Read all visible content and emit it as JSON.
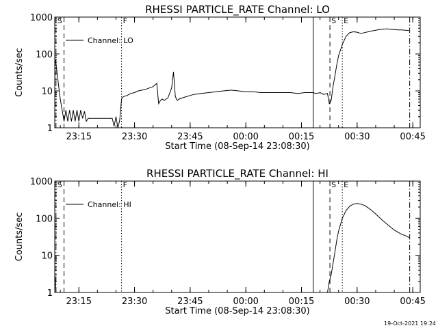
{
  "stamp": "19-Oct-2021 19:24",
  "chart_data": [
    {
      "type": "line",
      "title": "RHESSI PARTICLE_RATE Channel: LO",
      "xlabel": "Start Time (08-Sep-14 23:08:30)",
      "ylabel": "Counts/sec",
      "yscale": "log",
      "ylim": [
        1,
        1000
      ],
      "xlim": [
        "23:08:30",
        "00:47:00"
      ],
      "x_ticks": [
        "23:15",
        "23:30",
        "23:45",
        "00:00",
        "00:15",
        "00:30",
        "00:45"
      ],
      "y_ticks": [
        "1",
        "10",
        "100",
        "1000"
      ],
      "legend": {
        "placement": "top-left"
      },
      "series": [
        {
          "name": "Channel: LO",
          "x": [
            "23:08:30",
            "23:09:00",
            "23:09:30",
            "23:10:00",
            "23:10:30",
            "23:11:00",
            "23:11:30",
            "23:12:00",
            "23:12:30",
            "23:13:00",
            "23:13:30",
            "23:14:00",
            "23:14:30",
            "23:15:00",
            "23:15:30",
            "23:16:00",
            "23:16:30",
            "23:17:00",
            "23:17:30",
            "23:18:00",
            "23:18:30",
            "23:19:00",
            "23:19:30",
            "23:20:00",
            "23:21:00",
            "23:22:00",
            "23:23:00",
            "23:24:00",
            "23:24:30",
            "23:25:00",
            "23:25:30",
            "23:26:00",
            "23:26:30",
            "23:27:00",
            "23:28:00",
            "23:29:00",
            "23:30:00",
            "23:31:00",
            "23:32:00",
            "23:33:00",
            "23:34:00",
            "23:35:00",
            "23:36:00",
            "23:36:30",
            "23:37:00",
            "23:37:30",
            "23:38:00",
            "23:39:00",
            "23:40:00",
            "23:40:30",
            "23:41:00",
            "23:41:30",
            "23:42:00",
            "23:43:00",
            "23:44:00",
            "23:45:00",
            "23:46:00",
            "23:48:00",
            "23:50:00",
            "23:52:00",
            "23:54:00",
            "23:56:00",
            "23:58:00",
            "00:00:00",
            "00:02:00",
            "00:04:00",
            "00:06:00",
            "00:08:00",
            "00:10:00",
            "00:12:00",
            "00:14:00",
            "00:16:00",
            "00:18:00",
            "00:19:00",
            "00:20:00",
            "00:21:00",
            "00:22:00",
            "00:22:30",
            "00:23:00",
            "00:23:30",
            "00:24:00",
            "00:24:30",
            "00:25:00",
            "00:26:00",
            "00:27:00",
            "00:28:00",
            "00:29:00",
            "00:30:00",
            "00:31:00",
            "00:32:00",
            "00:33:00",
            "00:34:00",
            "00:35:00",
            "00:36:00",
            "00:37:00",
            "00:38:00",
            "00:39:00",
            "00:40:00",
            "00:41:00",
            "00:42:00",
            "00:43:00",
            "00:44:00"
          ],
          "y": [
            80,
            40,
            15,
            6,
            3,
            1.5,
            3,
            1.5,
            3,
            1.5,
            3,
            1.5,
            3,
            1.5,
            3,
            1.8,
            2.8,
            1.5,
            1.8,
            1.8,
            1.8,
            1.8,
            1.8,
            1.8,
            1.8,
            1.8,
            1.8,
            1.8,
            1.1,
            2,
            1.0,
            1.6,
            6,
            7,
            7.5,
            8.5,
            9,
            10,
            10.5,
            11,
            12,
            13,
            16,
            4.5,
            5.5,
            6,
            5.5,
            6.5,
            12,
            33,
            7,
            5.5,
            6,
            6.5,
            7,
            7.5,
            8,
            8.5,
            9,
            9.5,
            10,
            10.5,
            10,
            9.5,
            9.5,
            9,
            9,
            9,
            9,
            9,
            8.5,
            9,
            9,
            8.5,
            9,
            8,
            8.5,
            4.5,
            5.5,
            13,
            25,
            50,
            90,
            180,
            300,
            380,
            400,
            390,
            360,
            380,
            400,
            420,
            440,
            460,
            470,
            480,
            470,
            460,
            450,
            450,
            440,
            430
          ]
        }
      ],
      "markers": [
        {
          "label": "S",
          "time": "23:08:50",
          "style": "dash-dot"
        },
        {
          "label": "",
          "time": "23:11:00",
          "style": "dashed"
        },
        {
          "label": "F",
          "time": "23:26:30",
          "style": "dotted"
        },
        {
          "label": "",
          "time": "00:18:10",
          "style": "solid"
        },
        {
          "label": "S",
          "time": "00:22:40",
          "style": "dashed"
        },
        {
          "label": "E",
          "time": "00:26:00",
          "style": "dotted"
        },
        {
          "label": "",
          "time": "00:44:10",
          "style": "dash-dot"
        }
      ]
    },
    {
      "type": "line",
      "title": "RHESSI PARTICLE_RATE Channel: HI",
      "xlabel": "Start Time (08-Sep-14 23:08:30)",
      "ylabel": "Counts/sec",
      "yscale": "log",
      "ylim": [
        1,
        1000
      ],
      "xlim": [
        "23:08:30",
        "00:47:00"
      ],
      "x_ticks": [
        "23:15",
        "23:30",
        "23:45",
        "00:00",
        "00:15",
        "00:30",
        "00:45"
      ],
      "y_ticks": [
        "1",
        "10",
        "100",
        "1000"
      ],
      "legend": {
        "placement": "top-left"
      },
      "series": [
        {
          "name": "Channel: HI",
          "x": [
            "23:08:30",
            "23:08:40",
            "23:08:50",
            "00:22:00",
            "00:22:30",
            "00:23:00",
            "00:23:30",
            "00:24:00",
            "00:24:30",
            "00:25:00",
            "00:26:00",
            "00:27:00",
            "00:28:00",
            "00:29:00",
            "00:30:00",
            "00:31:00",
            "00:32:00",
            "00:33:00",
            "00:34:00",
            "00:35:00",
            "00:36:00",
            "00:37:00",
            "00:38:00",
            "00:39:00",
            "00:40:00",
            "00:41:00",
            "00:42:00",
            "00:43:00",
            "00:44:00"
          ],
          "y": [
            3,
            2,
            1,
            1,
            2,
            3,
            6,
            12,
            25,
            45,
            100,
            160,
            210,
            240,
            250,
            240,
            220,
            190,
            160,
            130,
            105,
            85,
            70,
            58,
            48,
            42,
            37,
            34,
            30
          ]
        }
      ],
      "markers": [
        {
          "label": "S",
          "time": "23:08:50",
          "style": "dash-dot"
        },
        {
          "label": "",
          "time": "23:11:00",
          "style": "dashed"
        },
        {
          "label": "F",
          "time": "23:26:30",
          "style": "dotted"
        },
        {
          "label": "",
          "time": "00:18:10",
          "style": "solid"
        },
        {
          "label": "S",
          "time": "00:22:40",
          "style": "dashed"
        },
        {
          "label": "E",
          "time": "00:26:00",
          "style": "dotted"
        },
        {
          "label": "",
          "time": "00:44:10",
          "style": "dash-dot"
        }
      ]
    }
  ]
}
